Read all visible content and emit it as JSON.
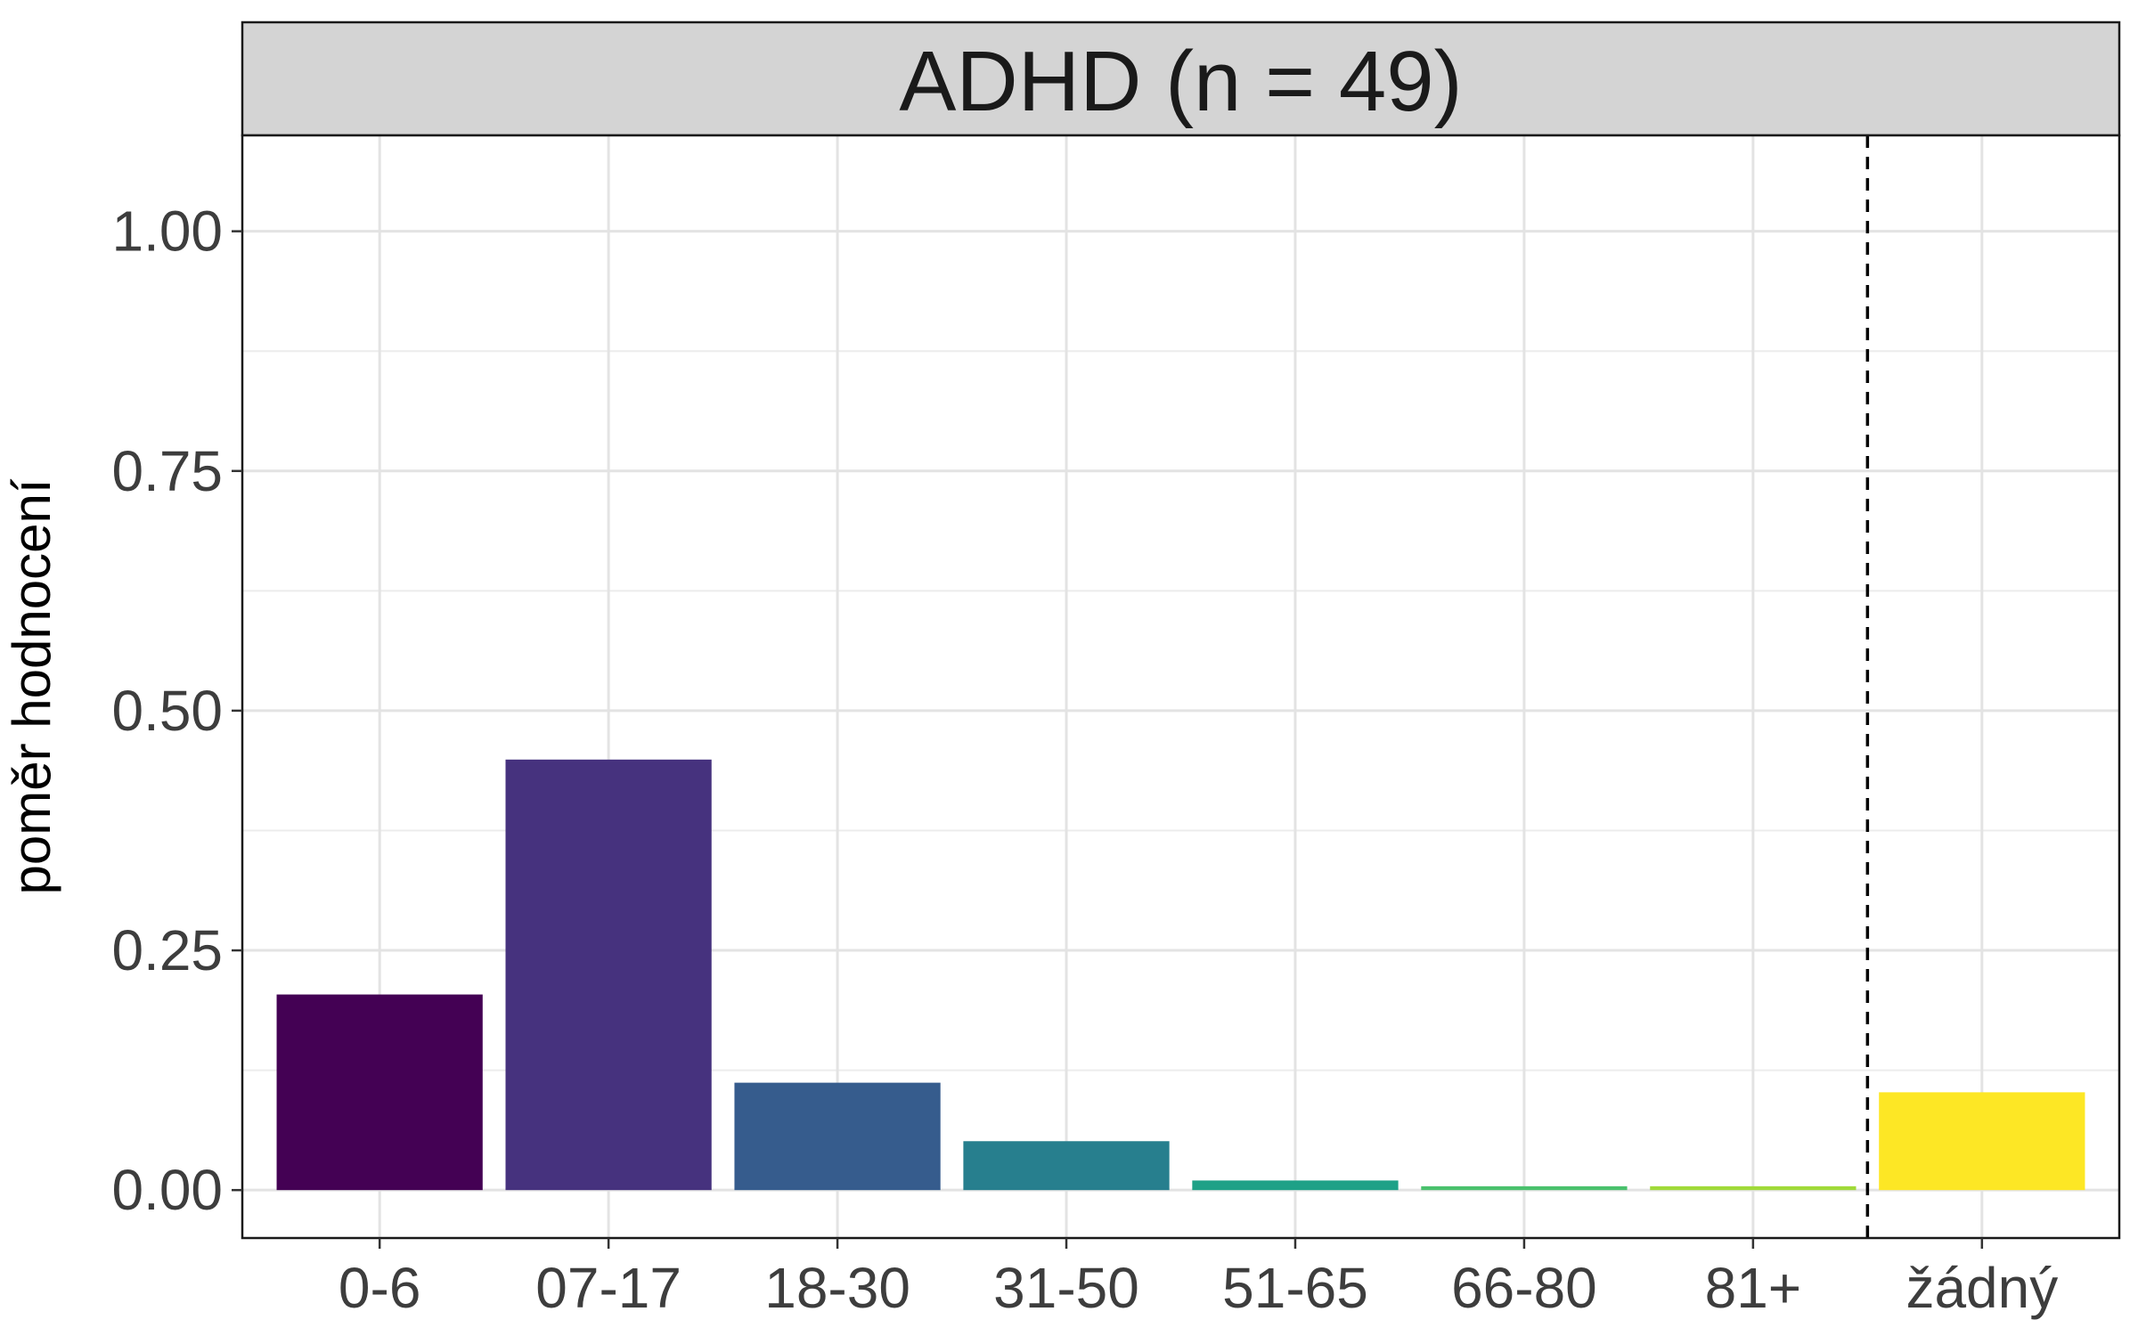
{
  "chart_data": {
    "type": "bar",
    "title": "ADHD (n = 49)",
    "xlabel": "",
    "ylabel": "poměr hodnocení",
    "categories": [
      "0-6",
      "07-17",
      "18-30",
      "31-50",
      "51-65",
      "66-80",
      "81+",
      "žádný"
    ],
    "values": [
      0.204,
      0.449,
      0.112,
      0.051,
      0.01,
      0.004,
      0.004,
      0.102
    ],
    "colors": [
      "#440154",
      "#46327e",
      "#365c8d",
      "#277f8e",
      "#1fa187",
      "#4ac16d",
      "#a0da39",
      "#fde725"
    ],
    "ylim": [
      -0.05,
      1.1
    ],
    "yticks": [
      "0.00",
      "0.25",
      "0.50",
      "0.75",
      "1.00"
    ],
    "ytick_values": [
      0,
      0.25,
      0.5,
      0.75,
      1.0
    ],
    "grid": true,
    "reference_line": {
      "style": "dashed",
      "between": [
        "81+",
        "žádný"
      ]
    }
  }
}
